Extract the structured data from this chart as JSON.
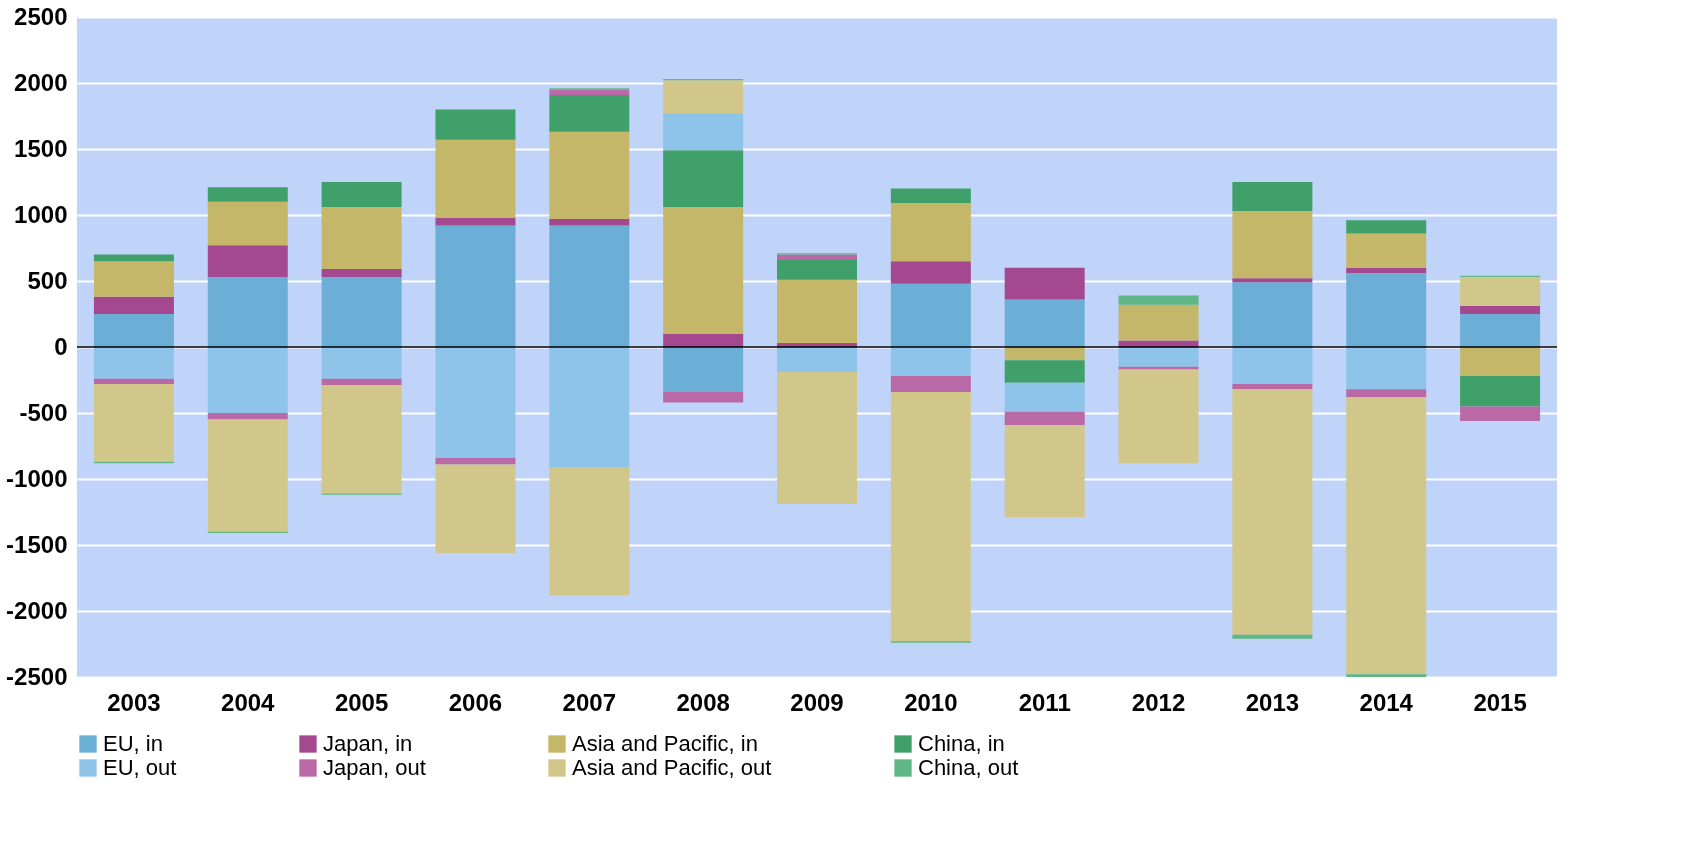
{
  "chart_data": {
    "type": "bar",
    "stacked": true,
    "categories": [
      "2003",
      "2004",
      "2005",
      "2006",
      "2007",
      "2008",
      "2009",
      "2010",
      "2011",
      "2012",
      "2013",
      "2014",
      "2015"
    ],
    "series": [
      {
        "name": "EU, in",
        "color": "#6baed6",
        "values": [
          250,
          530,
          530,
          920,
          920,
          -340,
          0,
          480,
          360,
          0,
          490,
          560,
          250
        ]
      },
      {
        "name": "Japan, in",
        "color": "#a4498f",
        "values": [
          130,
          240,
          60,
          60,
          50,
          100,
          30,
          170,
          240,
          50,
          30,
          40,
          60
        ]
      },
      {
        "name": "Asia and Pacific, in",
        "color": "#c4b76a",
        "values": [
          270,
          330,
          470,
          590,
          660,
          960,
          480,
          440,
          -100,
          270,
          510,
          260,
          -220
        ]
      },
      {
        "name": "China, in",
        "color": "#3fa169",
        "values": [
          50,
          110,
          190,
          230,
          280,
          430,
          150,
          110,
          -170,
          0,
          220,
          100,
          -230
        ]
      },
      {
        "name": "EU, out",
        "color": "#8ec4ea",
        "values": [
          -240,
          -500,
          -240,
          -840,
          -910,
          280,
          -190,
          -220,
          -220,
          -150,
          -280,
          -320,
          0
        ]
      },
      {
        "name": "Japan, out",
        "color": "#b96aa6",
        "values": [
          -40,
          -50,
          -50,
          -50,
          40,
          -80,
          40,
          -120,
          -100,
          -20,
          -40,
          -60,
          -110
        ]
      },
      {
        "name": "Asia and Pacific, out",
        "color": "#d2c78a",
        "values": [
          -590,
          -850,
          -820,
          -670,
          -970,
          250,
          -1000,
          -1890,
          -700,
          -710,
          -1860,
          -2100,
          220
        ]
      },
      {
        "name": "China, out",
        "color": "#5fb785",
        "values": [
          -10,
          -10,
          -10,
          0,
          10,
          10,
          10,
          -10,
          0,
          70,
          -30,
          -20,
          10
        ]
      }
    ],
    "ylim": [
      -2500,
      2500
    ],
    "yticks": [
      -2500,
      -2000,
      -1500,
      -1000,
      -500,
      0,
      500,
      1000,
      1500,
      2000,
      2500
    ],
    "ref_lines": [
      {
        "axis": "y",
        "value": 0,
        "color": "#000000"
      }
    ],
    "grid": "y",
    "legend": "bottom"
  }
}
